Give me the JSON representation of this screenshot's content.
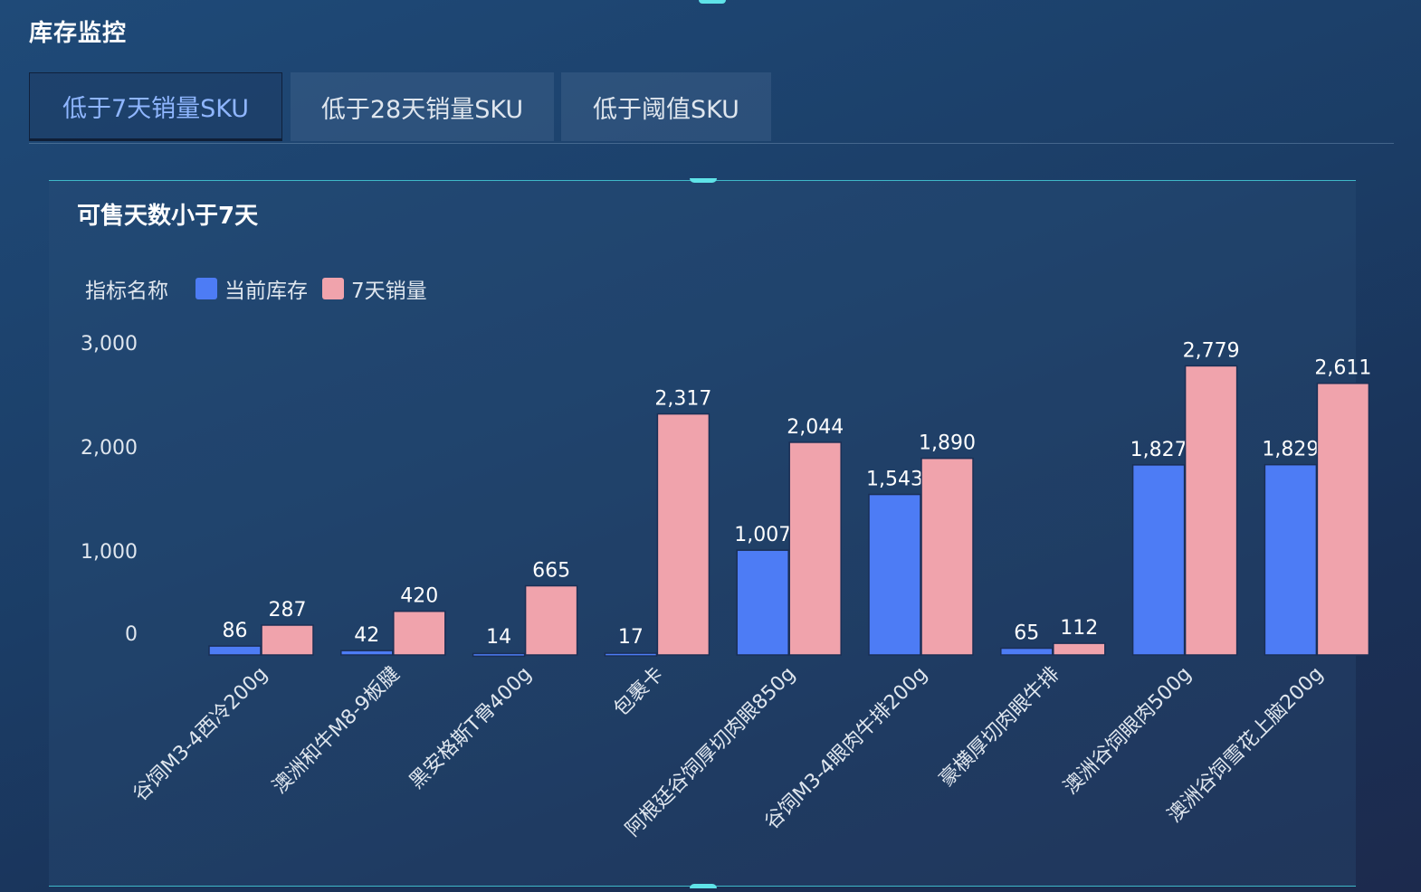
{
  "page": {
    "title": "库存监控"
  },
  "tabs": [
    {
      "label": "低于7天销量SKU",
      "active": true
    },
    {
      "label": "低于28天销量SKU",
      "active": false
    },
    {
      "label": "低于阈值SKU",
      "active": false
    }
  ],
  "panel": {
    "title": "可售天数小于7天"
  },
  "legend": {
    "title": "指标名称"
  },
  "colors": {
    "accent": "#5fe3e8",
    "current_stock": "#4d7cf5",
    "sales_7d": "#f0a3ac"
  },
  "chart_data": {
    "type": "bar",
    "categories": [
      "谷饲M3-4西冷200g",
      "澳洲和牛M8-9板腱",
      "黑安格斯T骨400g",
      "包裹卡",
      "阿根廷谷饲厚切肉眼850g",
      "谷饲M3-4眼肉牛排200g",
      "豪横厚切肉眼牛排",
      "澳洲谷饲眼肉500g",
      "澳洲谷饲雪花上脑200g"
    ],
    "series": [
      {
        "name": "当前库存",
        "values": [
          86,
          42,
          14,
          17,
          1007,
          1543,
          65,
          1827,
          1829
        ]
      },
      {
        "name": "7天销量",
        "values": [
          287,
          420,
          665,
          2317,
          2044,
          1890,
          112,
          2779,
          2611
        ]
      }
    ],
    "y_ticks": [
      0,
      1000,
      2000,
      3000
    ],
    "y_tick_labels": [
      "0",
      "1,000",
      "2,000",
      "3,000"
    ],
    "value_labels": [
      [
        "86",
        "42",
        "14",
        "17",
        "1,007",
        "1,543",
        "65",
        "1,827",
        "1,829"
      ],
      [
        "287",
        "420",
        "665",
        "2,317",
        "2,044",
        "1,890",
        "112",
        "2,779",
        "2,611"
      ]
    ],
    "ylim": [
      0,
      3000
    ],
    "grid": false,
    "legend_position": "top-left"
  }
}
